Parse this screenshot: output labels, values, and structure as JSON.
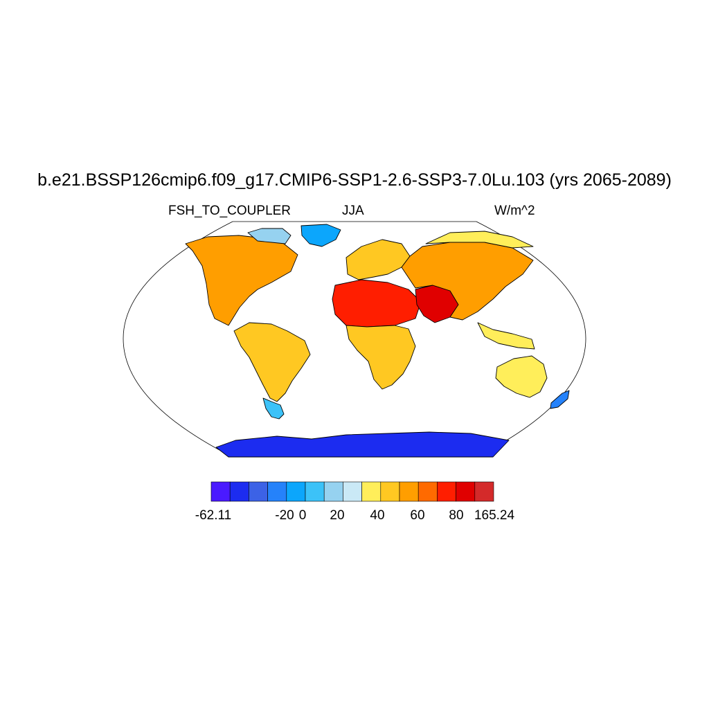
{
  "title": "b.e21.BSSP126cmip6.f09_g17.CMIP6-SSP1-2.6-SSP3-7.0Lu.103 (yrs 2065-2089)",
  "variable": "FSH_TO_COUPLER",
  "season": "JJA",
  "units": "W/m^2",
  "map": {
    "projection": "robinson",
    "colors": {
      "ocean": "#ffffff",
      "coastline": "#000000",
      "land_default": "#ff9a00"
    },
    "regions": [
      {
        "name": "north-america",
        "level": 10
      },
      {
        "name": "greenland",
        "level": 4
      },
      {
        "name": "canadian-arctic",
        "level": 6
      },
      {
        "name": "south-america",
        "level": 9
      },
      {
        "name": "patagonia",
        "level": 5
      },
      {
        "name": "europe",
        "level": 9
      },
      {
        "name": "north-africa",
        "level": 12
      },
      {
        "name": "sub-saharan-africa",
        "level": 9
      },
      {
        "name": "arabia",
        "level": 13
      },
      {
        "name": "asia",
        "level": 10
      },
      {
        "name": "siberia",
        "level": 8
      },
      {
        "name": "southeast-asia",
        "level": 8
      },
      {
        "name": "australia",
        "level": 8
      },
      {
        "name": "new-zealand",
        "level": 3
      },
      {
        "name": "antarctica",
        "level": 1
      }
    ]
  },
  "colorbar": {
    "colors": [
      "#4a1aff",
      "#1c2cf0",
      "#3c62e6",
      "#2582fa",
      "#0ca6fc",
      "#3cc2f8",
      "#96d2f0",
      "#cae9f6",
      "#ffee5a",
      "#ffc822",
      "#ff9e00",
      "#ff6a00",
      "#ff1e00",
      "#e00000",
      "#d42a2a"
    ],
    "labels": [
      "-62.11",
      "-20",
      "0",
      "20",
      "40",
      "60",
      "80",
      "165.24"
    ],
    "label_positions": [
      0,
      2,
      3,
      4,
      5,
      6,
      7,
      8
    ]
  }
}
